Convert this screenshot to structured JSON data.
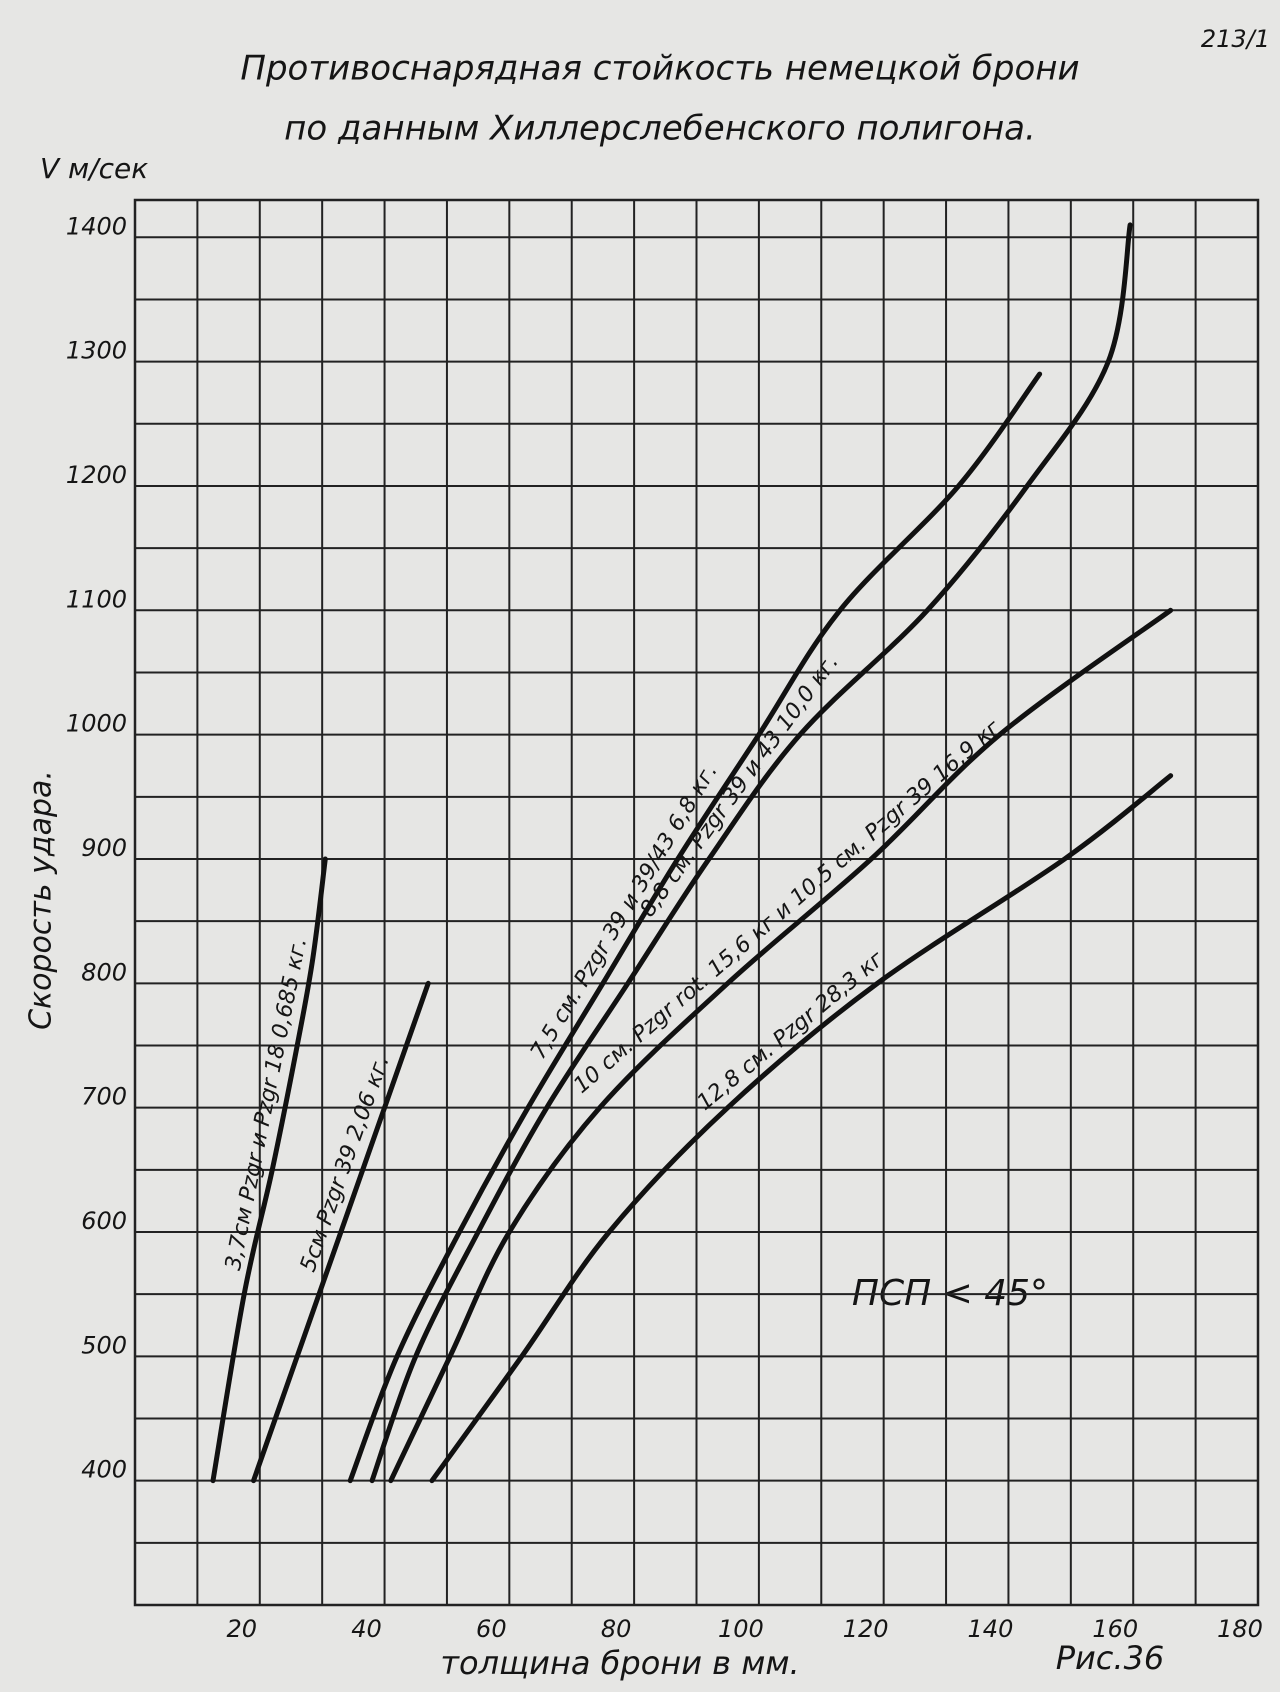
{
  "chart_data": {
    "type": "line",
    "title": "Противоснарядная стойкость немецкой брони",
    "subtitle": "по данным Хиллерслебенского полигона.",
    "page_number": "213/1",
    "y_unit": "V м/сек",
    "y_label": "Скорость удара.",
    "x_label": "толщина брони в мм.",
    "annotation": "ПСП < 45°",
    "figure_label": "Рис.36",
    "xlim": [
      0,
      180
    ],
    "ylim": [
      300,
      1430
    ],
    "xticks": [
      20,
      40,
      60,
      80,
      100,
      120,
      140,
      160,
      180
    ],
    "yticks": [
      400,
      500,
      600,
      700,
      800,
      900,
      1000,
      1100,
      1200,
      1300,
      1400
    ],
    "x_minor_ticks": [
      10,
      30,
      50,
      70,
      90,
      110,
      130,
      150,
      170
    ],
    "y_minor_ticks": [
      350,
      450,
      550,
      650,
      750,
      850,
      950,
      1050,
      1150,
      1250,
      1350
    ],
    "grid": true,
    "series": [
      {
        "name": "3,7см Pzgr и Pzgr 18 0,685 кг.",
        "color": "#111111",
        "x": [
          12.5,
          17.5,
          22,
          26,
          28.5,
          30.5
        ],
        "values": [
          400,
          550,
          650,
          750,
          820,
          900
        ]
      },
      {
        "name": "5см Pzgr 39 2,06 кг.",
        "color": "#111111",
        "x": [
          19,
          26,
          33,
          40,
          47
        ],
        "values": [
          400,
          500,
          600,
          700,
          800
        ]
      },
      {
        "name": "7,5 см. Pzgr 39 и 39/43 6,8 кг.",
        "color": "#111111",
        "x": [
          34.5,
          42,
          52,
          63,
          75,
          87,
          100,
          113,
          132,
          145
        ],
        "values": [
          400,
          500,
          600,
          700,
          800,
          900,
          1000,
          1100,
          1200,
          1290
        ]
      },
      {
        "name": "8,8 см. Pzgr 39 и 43 10,0 кг.",
        "color": "#111111",
        "x": [
          38,
          45,
          55,
          66,
          79,
          92,
          106.6,
          127,
          143,
          156,
          159.5
        ],
        "values": [
          400,
          500,
          600,
          700,
          800,
          900,
          1000,
          1100,
          1200,
          1300,
          1410
        ]
      },
      {
        "name": "10 см. Pzgr rot. 15,6 кг и 10,5 см. Pzgr 39 16,9 кг",
        "color": "#111111",
        "x": [
          41,
          50.5,
          60,
          74.5,
          95,
          118,
          138.6,
          166
        ],
        "values": [
          400,
          500,
          600,
          700,
          800,
          900,
          1000,
          1100
        ]
      },
      {
        "name": "12,8 см. Pzgr 28,3 кг",
        "color": "#111111",
        "x": [
          47.6,
          62,
          76,
          95,
          119,
          149,
          166
        ],
        "values": [
          400,
          500,
          600,
          700,
          800,
          900,
          967
        ]
      }
    ]
  }
}
